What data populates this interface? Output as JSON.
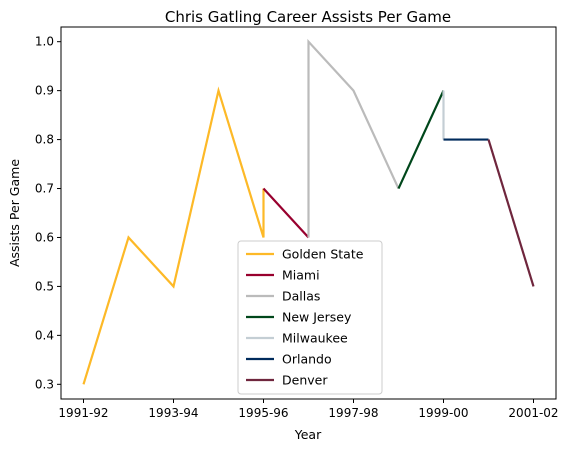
{
  "chart_data": {
    "type": "line",
    "title": "Chris Gatling Career Assists Per Game",
    "xlabel": "Year",
    "ylabel": "Assists Per Game",
    "x_tick_labels": [
      "1991-92",
      "1993-94",
      "1995-96",
      "1997-98",
      "1999-00",
      "2001-02"
    ],
    "y_ticks": [
      0.3,
      0.4,
      0.5,
      0.6,
      0.7,
      0.8,
      0.9,
      1.0
    ],
    "y_tick_labels": [
      "0.3",
      "0.4",
      "0.5",
      "0.6",
      "0.7",
      "0.8",
      "0.9",
      "1.0"
    ],
    "xlim": [
      "1991-92",
      "2001-02"
    ],
    "ylim": [
      0.27,
      1.03
    ],
    "legend_position": "lower center",
    "grid": false,
    "series": [
      {
        "name": "Golden State",
        "color": "#FDB927",
        "points": [
          [
            "1991-92",
            0.3
          ],
          [
            "1992-93",
            0.6
          ],
          [
            "1993-94",
            0.5
          ],
          [
            "1994-95",
            0.9
          ],
          [
            "1995-96",
            0.6
          ],
          [
            "1995-96",
            0.7
          ]
        ]
      },
      {
        "name": "Miami",
        "color": "#98002E",
        "points": [
          [
            "1995-96",
            0.7
          ],
          [
            "1996-97",
            0.6
          ]
        ]
      },
      {
        "name": "Dallas",
        "color": "#BBBBBB",
        "points": [
          [
            "1996-97",
            0.6
          ],
          [
            "1996-97",
            1.0
          ],
          [
            "1997-98",
            0.9
          ],
          [
            "1998-99",
            0.7
          ]
        ]
      },
      {
        "name": "New Jersey",
        "color": "#00471B",
        "points": [
          [
            "1998-99",
            0.7
          ],
          [
            "1999-00",
            0.9
          ]
        ]
      },
      {
        "name": "Milwaukee",
        "color": "#C4CED4",
        "points": [
          [
            "1999-00",
            0.9
          ],
          [
            "1999-00",
            0.8
          ]
        ]
      },
      {
        "name": "Orlando",
        "color": "#002B5C",
        "points": [
          [
            "1999-00",
            0.8
          ],
          [
            "2000-01",
            0.8
          ]
        ]
      },
      {
        "name": "Denver",
        "color": "#6F263D",
        "points": [
          [
            "2000-01",
            0.8
          ],
          [
            "2001-02",
            0.5
          ]
        ]
      }
    ]
  }
}
